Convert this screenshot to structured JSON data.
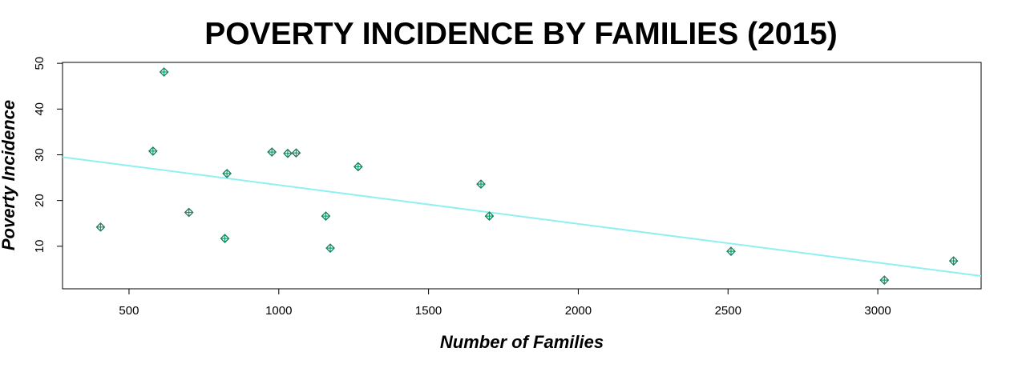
{
  "chart_data": {
    "type": "scatter",
    "title": "POVERTY INCIDENCE BY FAMILIES (2015)",
    "xlabel": "Number of Families",
    "ylabel": "Poverty Incidence",
    "xlim": [
      278,
      3345
    ],
    "ylim": [
      0.7,
      50.2
    ],
    "xticks": [
      500,
      1000,
      1500,
      2000,
      2500,
      3000
    ],
    "yticks": [
      10,
      20,
      30,
      40,
      50
    ],
    "points": [
      {
        "x": 405,
        "y": 14.2
      },
      {
        "x": 580,
        "y": 30.8
      },
      {
        "x": 617,
        "y": 48.1
      },
      {
        "x": 700,
        "y": 17.4
      },
      {
        "x": 820,
        "y": 11.7
      },
      {
        "x": 827,
        "y": 25.9
      },
      {
        "x": 977,
        "y": 30.6
      },
      {
        "x": 1030,
        "y": 30.3
      },
      {
        "x": 1058,
        "y": 30.4
      },
      {
        "x": 1157,
        "y": 16.6
      },
      {
        "x": 1172,
        "y": 9.6
      },
      {
        "x": 1265,
        "y": 27.4
      },
      {
        "x": 1675,
        "y": 23.6
      },
      {
        "x": 1703,
        "y": 16.6
      },
      {
        "x": 2510,
        "y": 8.9
      },
      {
        "x": 3022,
        "y": 2.6
      },
      {
        "x": 3253,
        "y": 6.8
      }
    ],
    "trendline": {
      "color": "#8ef0f0",
      "start": {
        "x": 278,
        "y": 29.5
      },
      "end": {
        "x": 3345,
        "y": 3.5
      }
    },
    "marker_color": "#00a060",
    "grid": false
  }
}
